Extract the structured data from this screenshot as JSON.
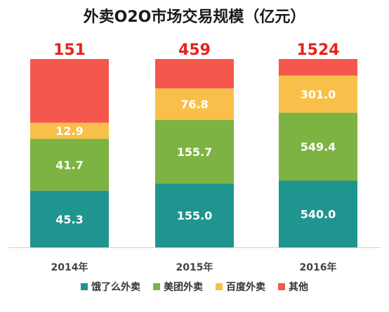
{
  "chart_data": {
    "type": "bar",
    "stacked": true,
    "title": "外卖O2O市场交易规模（亿元）",
    "categories": [
      "2014年",
      "2015年",
      "2016年"
    ],
    "totals": [
      151,
      459,
      1524
    ],
    "series": [
      {
        "name": "饿了么外卖",
        "color": "#1f9590",
        "values": [
          45.3,
          155.0,
          540.0
        ],
        "labels": [
          "45.3",
          "155.0",
          "540.0"
        ]
      },
      {
        "name": "美团外卖",
        "color": "#7cb342",
        "values": [
          41.7,
          155.7,
          549.4
        ],
        "labels": [
          "41.7",
          "155.7",
          "549.4"
        ]
      },
      {
        "name": "百度外卖",
        "color": "#f8c04a",
        "values": [
          12.9,
          76.8,
          301.0
        ],
        "labels": [
          "12.9",
          "76.8",
          "301.0"
        ]
      },
      {
        "name": "其他",
        "color": "#f4574b",
        "values": [
          51.1,
          71.5,
          133.6
        ],
        "labels": [
          "",
          "",
          ""
        ]
      }
    ],
    "total_label_color": "#e8231c",
    "normalized": true,
    "ylim": [
      0,
      1
    ],
    "legend_position": "bottom",
    "grid": false
  }
}
